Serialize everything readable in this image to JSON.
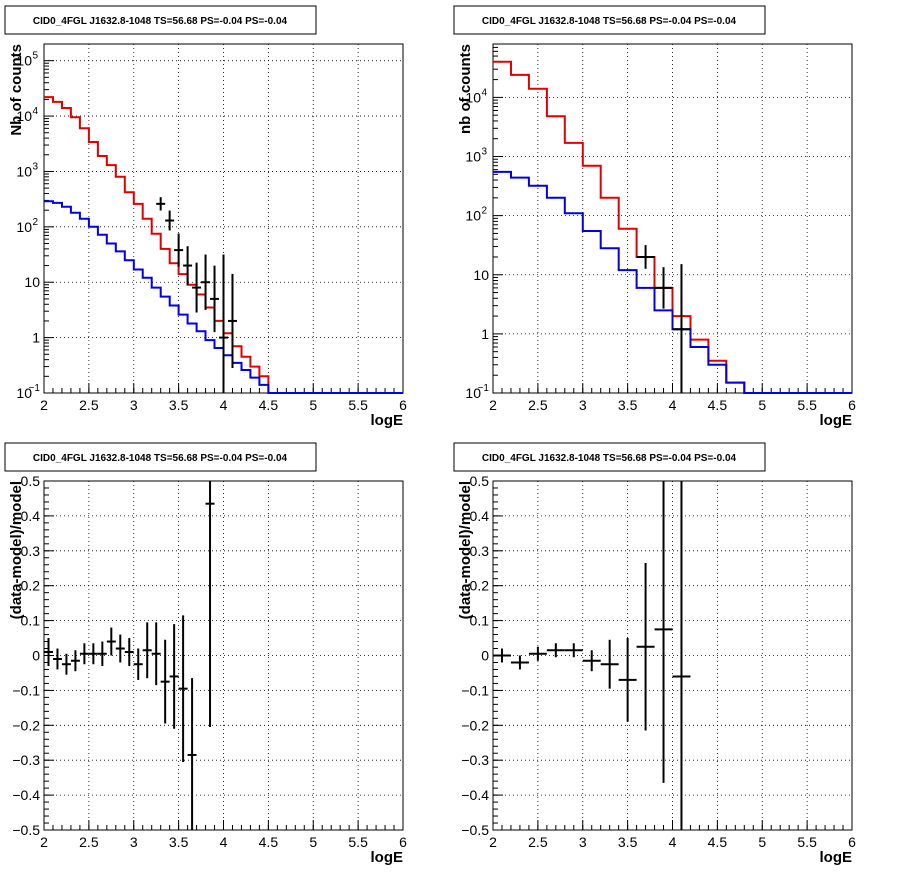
{
  "chart_data": [
    {
      "type": "line",
      "panel": "top-left",
      "title": "CID0_4FGL J1632.8-1048 TS=56.68 PS=-0.04 PS=-0.04",
      "xlabel": "logE",
      "ylabel": "Nb of counts",
      "xlim": [
        2,
        6
      ],
      "ylim": [
        0.1,
        200000
      ],
      "yscale": "log",
      "grid": true,
      "xticks": [
        "2",
        "2.5",
        "3",
        "3.5",
        "4",
        "4.5",
        "5",
        "5.5",
        "6"
      ],
      "yticks": [
        {
          "v": 0.1,
          "label": "10",
          "sup": "−1"
        },
        {
          "v": 1,
          "label": "1",
          "sup": ""
        },
        {
          "v": 10,
          "label": "10",
          "sup": ""
        },
        {
          "v": 100,
          "label": "10",
          "sup": "2"
        },
        {
          "v": 1000,
          "label": "10",
          "sup": "3"
        },
        {
          "v": 10000,
          "label": "10",
          "sup": "4"
        },
        {
          "v": 100000,
          "label": "10",
          "sup": "5"
        }
      ],
      "series": [
        {
          "role": "total",
          "color": "#e00000",
          "bin_width": 0.1,
          "x_start": 2.0,
          "values": [
            22000,
            18000,
            14000,
            9500,
            6000,
            3400,
            1900,
            1300,
            800,
            420,
            260,
            140,
            75,
            40,
            22,
            14,
            9,
            6,
            3.5,
            2,
            1.2,
            0.7,
            0.45,
            0.3,
            0.2,
            0.1,
            0.1,
            0.1,
            0.1,
            0.1,
            0.1,
            0.1,
            0.1,
            0.1,
            0.1,
            0.1,
            0.1,
            0.1,
            0.1,
            0.1
          ]
        },
        {
          "role": "source",
          "color": "#0000e0",
          "bin_width": 0.1,
          "x_start": 2.0,
          "values": [
            290,
            270,
            230,
            180,
            140,
            100,
            72,
            50,
            36,
            25,
            17,
            12,
            8,
            5.5,
            3.8,
            2.6,
            1.8,
            1.3,
            0.9,
            0.65,
            0.48,
            0.35,
            0.26,
            0.19,
            0.14,
            0.1,
            0.1,
            0.1,
            0.1,
            0.1,
            0.1,
            0.1,
            0.1,
            0.1,
            0.1,
            0.1,
            0.1,
            0.1,
            0.1,
            0.1
          ]
        },
        {
          "role": "data",
          "color": "#000000",
          "points": [
            {
              "x": 3.3,
              "y": 260,
              "err": 0.12
            },
            {
              "x": 3.4,
              "y": 130,
              "err": 0.18
            },
            {
              "x": 3.5,
              "y": 38,
              "err": 0.3
            },
            {
              "x": 3.6,
              "y": 20,
              "err": 0.35
            },
            {
              "x": 3.7,
              "y": 8,
              "err": 0.45
            },
            {
              "x": 3.8,
              "y": 10,
              "err": 0.5
            },
            {
              "x": 3.9,
              "y": 5,
              "err": 0.6
            },
            {
              "x": 4.0,
              "y": 1,
              "err": 1.5
            },
            {
              "x": 4.1,
              "y": 2,
              "err": 0.85
            }
          ]
        }
      ]
    },
    {
      "type": "line",
      "panel": "top-right",
      "title": "CID0_4FGL J1632.8-1048 TS=56.68 PS=-0.04 PS=-0.04",
      "xlabel": "logE",
      "ylabel": "nb of counts",
      "xlim": [
        2,
        6
      ],
      "ylim": [
        0.1,
        80000
      ],
      "yscale": "log",
      "grid": true,
      "xticks": [
        "2",
        "2.5",
        "3",
        "3.5",
        "4",
        "4.5",
        "5",
        "5.5",
        "6"
      ],
      "yticks": [
        {
          "v": 0.1,
          "label": "10",
          "sup": "−1"
        },
        {
          "v": 1,
          "label": "1",
          "sup": ""
        },
        {
          "v": 10,
          "label": "10",
          "sup": ""
        },
        {
          "v": 100,
          "label": "10",
          "sup": "2"
        },
        {
          "v": 1000,
          "label": "10",
          "sup": "3"
        },
        {
          "v": 10000,
          "label": "10",
          "sup": "4"
        }
      ],
      "series": [
        {
          "role": "total",
          "color": "#e00000",
          "bin_width": 0.2,
          "x_start": 2.0,
          "values": [
            40000,
            24000,
            14000,
            4800,
            1700,
            700,
            200,
            60,
            20,
            6,
            2,
            0.8,
            0.35,
            0.15,
            0.1,
            0.1,
            0.1,
            0.1,
            0.1,
            0.1
          ]
        },
        {
          "role": "source",
          "color": "#0000e0",
          "bin_width": 0.2,
          "x_start": 2.0,
          "values": [
            550,
            440,
            320,
            200,
            110,
            55,
            28,
            12,
            6,
            2.5,
            1.2,
            0.6,
            0.3,
            0.15,
            0.1,
            0.1,
            0.1,
            0.1,
            0.1,
            0.1
          ]
        },
        {
          "role": "data",
          "color": "#000000",
          "points": [
            {
              "x": 3.7,
              "y": 20,
              "err": 0.2
            },
            {
              "x": 3.9,
              "y": 6,
              "err": 0.35
            },
            {
              "x": 4.1,
              "y": 1.2,
              "err": 1.1
            }
          ]
        }
      ]
    },
    {
      "type": "scatter",
      "panel": "bottom-left",
      "title": "CID0_4FGL J1632.8-1048 TS=56.68 PS=-0.04 PS=-0.04",
      "xlabel": "logE",
      "ylabel": "(data-model)/model",
      "xlim": [
        2,
        6
      ],
      "ylim": [
        -0.5,
        0.5
      ],
      "yscale": "linear",
      "grid": true,
      "xticks": [
        "2",
        "2.5",
        "3",
        "3.5",
        "4",
        "4.5",
        "5",
        "5.5",
        "6"
      ],
      "yticks": [
        {
          "v": -0.5,
          "label": "−0.5"
        },
        {
          "v": -0.4,
          "label": "−0.4"
        },
        {
          "v": -0.3,
          "label": "−0.3"
        },
        {
          "v": -0.2,
          "label": "−0.2"
        },
        {
          "v": -0.1,
          "label": "−0.1"
        },
        {
          "v": 0,
          "label": "0"
        },
        {
          "v": 0.1,
          "label": "0.1"
        },
        {
          "v": 0.2,
          "label": "0.2"
        },
        {
          "v": 0.3,
          "label": "0.3"
        },
        {
          "v": 0.4,
          "label": "0.4"
        },
        {
          "v": 0.5,
          "label": "0.5"
        }
      ],
      "bin_width": 0.1,
      "points": [
        {
          "x": 2.05,
          "y": 0.01,
          "err": 0.04
        },
        {
          "x": 2.15,
          "y": -0.01,
          "err": 0.03
        },
        {
          "x": 2.25,
          "y": -0.025,
          "err": 0.03
        },
        {
          "x": 2.35,
          "y": -0.015,
          "err": 0.03
        },
        {
          "x": 2.45,
          "y": 0.005,
          "err": 0.03
        },
        {
          "x": 2.55,
          "y": 0.005,
          "err": 0.03
        },
        {
          "x": 2.65,
          "y": 0.005,
          "err": 0.035
        },
        {
          "x": 2.75,
          "y": 0.04,
          "err": 0.04
        },
        {
          "x": 2.85,
          "y": 0.02,
          "err": 0.04
        },
        {
          "x": 2.95,
          "y": 0.01,
          "err": 0.04
        },
        {
          "x": 3.05,
          "y": -0.025,
          "err": 0.045
        },
        {
          "x": 3.15,
          "y": 0.015,
          "err": 0.08
        },
        {
          "x": 3.25,
          "y": 0.005,
          "err": 0.09
        },
        {
          "x": 3.35,
          "y": -0.075,
          "err": 0.12
        },
        {
          "x": 3.45,
          "y": -0.06,
          "err": 0.15
        },
        {
          "x": 3.55,
          "y": -0.095,
          "err": 0.21
        },
        {
          "x": 3.65,
          "y": -0.285,
          "err": 0.22
        },
        {
          "x": 3.85,
          "y": 0.435,
          "err": 0.64
        }
      ]
    },
    {
      "type": "scatter",
      "panel": "bottom-right",
      "title": "CID0_4FGL J1632.8-1048 TS=56.68 PS=-0.04 PS=-0.04",
      "xlabel": "logE",
      "ylabel": "(data-model)/model",
      "xlim": [
        2,
        6
      ],
      "ylim": [
        -0.5,
        0.5
      ],
      "yscale": "linear",
      "grid": true,
      "xticks": [
        "2",
        "2.5",
        "3",
        "3.5",
        "4",
        "4.5",
        "5",
        "5.5",
        "6"
      ],
      "yticks": [
        {
          "v": -0.5,
          "label": "−0.5"
        },
        {
          "v": -0.4,
          "label": "−0.4"
        },
        {
          "v": -0.3,
          "label": "−0.3"
        },
        {
          "v": -0.2,
          "label": "−0.2"
        },
        {
          "v": -0.1,
          "label": "−0.1"
        },
        {
          "v": 0,
          "label": "0"
        },
        {
          "v": 0.1,
          "label": "0.1"
        },
        {
          "v": 0.2,
          "label": "0.2"
        },
        {
          "v": 0.3,
          "label": "0.3"
        },
        {
          "v": 0.4,
          "label": "0.4"
        },
        {
          "v": 0.5,
          "label": "0.5"
        }
      ],
      "bin_width": 0.2,
      "points": [
        {
          "x": 2.1,
          "y": 0.0,
          "err": 0.02
        },
        {
          "x": 2.3,
          "y": -0.02,
          "err": 0.02
        },
        {
          "x": 2.5,
          "y": 0.005,
          "err": 0.02
        },
        {
          "x": 2.7,
          "y": 0.015,
          "err": 0.02
        },
        {
          "x": 2.9,
          "y": 0.015,
          "err": 0.02
        },
        {
          "x": 3.1,
          "y": -0.015,
          "err": 0.03
        },
        {
          "x": 3.3,
          "y": -0.025,
          "err": 0.07
        },
        {
          "x": 3.5,
          "y": -0.07,
          "err": 0.12
        },
        {
          "x": 3.7,
          "y": 0.025,
          "err": 0.24
        },
        {
          "x": 3.9,
          "y": 0.075,
          "err": 0.44
        },
        {
          "x": 4.1,
          "y": -0.06,
          "err": 0.6
        }
      ]
    }
  ]
}
